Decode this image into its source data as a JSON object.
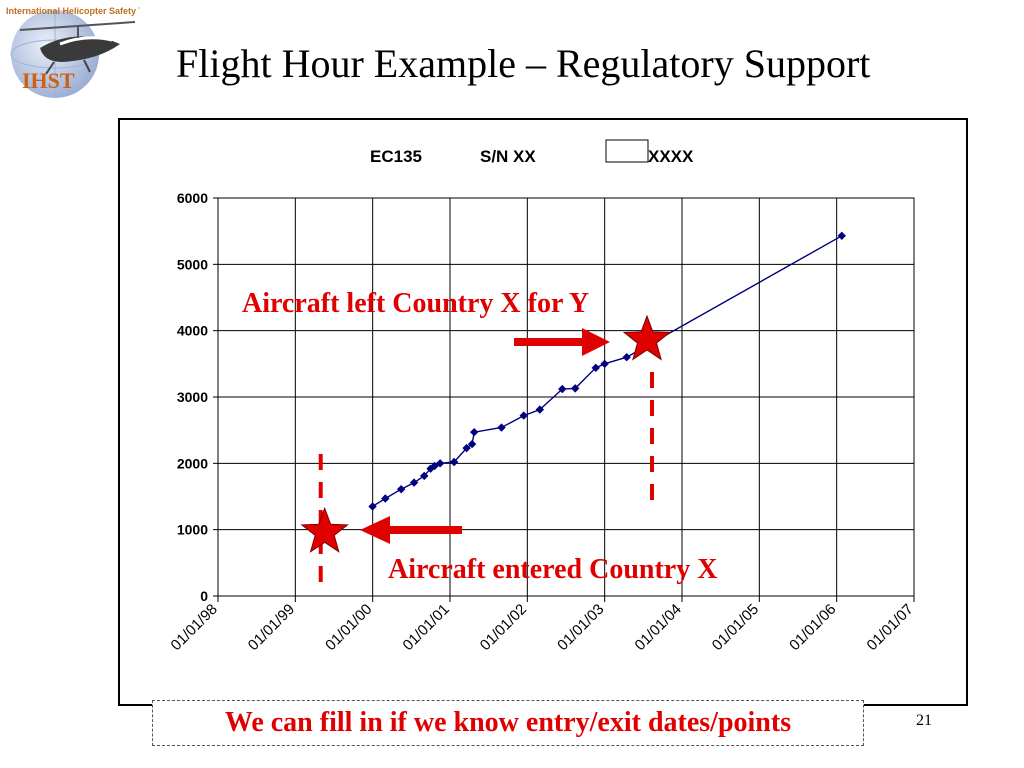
{
  "slide": {
    "title": "Flight Hour Example – Regulatory Support",
    "logo_text": "IHST",
    "logo_subtitle": "International Helicopter Safety Team",
    "footer_note": "We can fill in if we know entry/exit dates/points",
    "page_number": "21"
  },
  "chart_data": {
    "type": "line",
    "title_parts": [
      "EC135",
      "S/N XX",
      "XXXX"
    ],
    "xlabel": "",
    "ylabel": "",
    "x_ticks": [
      "01/01/98",
      "01/01/99",
      "01/01/00",
      "01/01/01",
      "01/01/02",
      "01/01/03",
      "01/01/04",
      "01/01/05",
      "01/01/06",
      "01/01/07"
    ],
    "y_ticks": [
      0,
      1000,
      2000,
      3000,
      4000,
      5000,
      6000
    ],
    "xlim": [
      "1998-01-01",
      "2007-01-01"
    ],
    "ylim": [
      0,
      6000
    ],
    "grid": true,
    "legend": "none",
    "series": [
      {
        "color": "#000080",
        "points": [
          {
            "x": "2000-01-01",
            "y": 1350
          },
          {
            "x": "2000-03-01",
            "y": 1470
          },
          {
            "x": "2000-05-15",
            "y": 1610
          },
          {
            "x": "2000-07-15",
            "y": 1710
          },
          {
            "x": "2000-09-01",
            "y": 1810
          },
          {
            "x": "2000-10-01",
            "y": 1920
          },
          {
            "x": "2000-10-20",
            "y": 1960
          },
          {
            "x": "2000-11-15",
            "y": 2000
          },
          {
            "x": "2001-01-20",
            "y": 2020
          },
          {
            "x": "2001-03-20",
            "y": 2230
          },
          {
            "x": "2001-04-15",
            "y": 2290
          },
          {
            "x": "2001-04-25",
            "y": 2470
          },
          {
            "x": "2001-09-01",
            "y": 2540
          },
          {
            "x": "2001-12-15",
            "y": 2720
          },
          {
            "x": "2002-03-01",
            "y": 2810
          },
          {
            "x": "2002-06-15",
            "y": 3120
          },
          {
            "x": "2002-08-15",
            "y": 3130
          },
          {
            "x": "2002-11-20",
            "y": 3440
          },
          {
            "x": "2003-01-01",
            "y": 3500
          },
          {
            "x": "2003-04-15",
            "y": 3600
          },
          {
            "x": "2006-01-25",
            "y": 5430
          }
        ]
      }
    ],
    "annotations": [
      {
        "text": "Aircraft left Country X for Y",
        "color": "#e00000",
        "star": {
          "x": "2003-07-20",
          "y": 3860
        }
      },
      {
        "text": "Aircraft entered Country X",
        "color": "#e00000",
        "star": {
          "x": "1999-05-20",
          "y": 960
        }
      }
    ]
  }
}
